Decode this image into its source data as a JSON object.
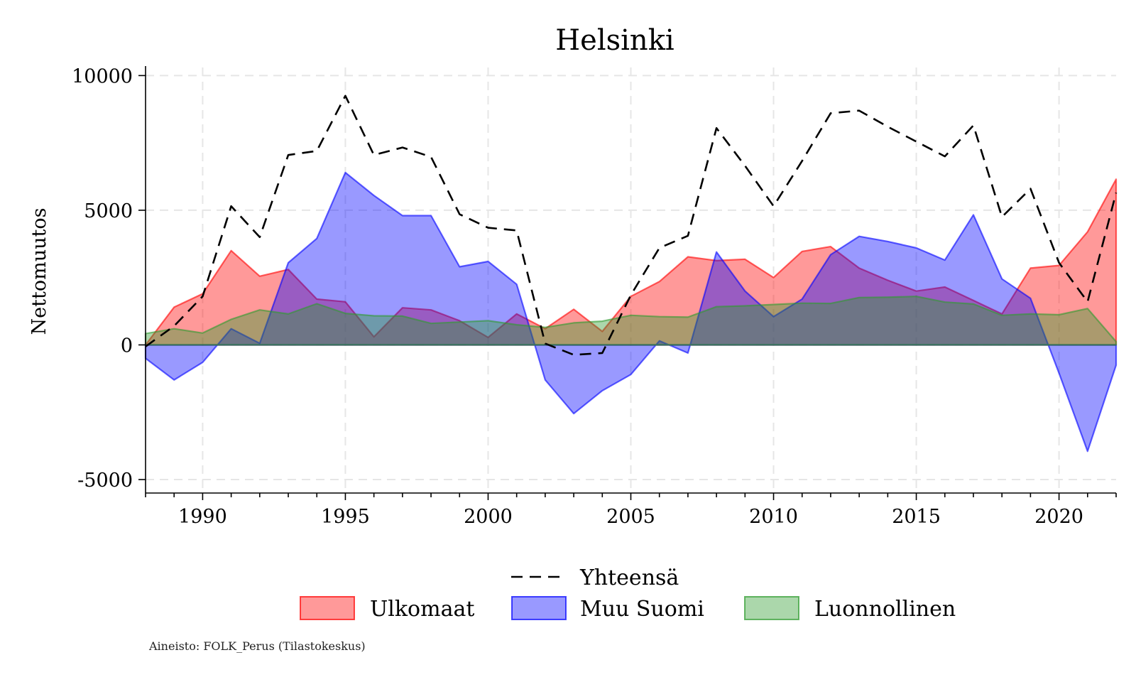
{
  "chart_data": {
    "type": "area",
    "title": "Helsinki",
    "xlabel": "",
    "ylabel": "Nettomuutos",
    "xlim": [
      1988,
      2022
    ],
    "ylim": [
      -5500,
      10300
    ],
    "xticks": [
      1990,
      1995,
      2000,
      2005,
      2010,
      2015,
      2020
    ],
    "yticks": [
      -5000,
      0,
      5000,
      10000
    ],
    "x": [
      1988,
      1989,
      1990,
      1991,
      1992,
      1993,
      1994,
      1995,
      1996,
      1997,
      1998,
      1999,
      2000,
      2001,
      2002,
      2003,
      2004,
      2005,
      2006,
      2007,
      2008,
      2009,
      2010,
      2011,
      2012,
      2013,
      2014,
      2015,
      2016,
      2017,
      2018,
      2019,
      2020,
      2021,
      2022
    ],
    "series": [
      {
        "name": "Ulkomaat",
        "style": "area",
        "color": "#ff0000",
        "values": [
          0,
          1400,
          1900,
          3500,
          2550,
          2800,
          1700,
          1600,
          300,
          1380,
          1300,
          900,
          280,
          1150,
          600,
          1320,
          500,
          1800,
          2350,
          3270,
          3130,
          3180,
          2500,
          3470,
          3650,
          2850,
          2400,
          2000,
          2150,
          1650,
          1150,
          2850,
          2950,
          4200,
          6150
        ]
      },
      {
        "name": "Muu Suomi",
        "style": "area",
        "color": "#0000ff",
        "values": [
          -500,
          -1300,
          -650,
          600,
          60,
          3050,
          3950,
          6400,
          5550,
          4800,
          4800,
          2900,
          3100,
          2250,
          -1300,
          -2550,
          -1700,
          -1100,
          150,
          -300,
          3450,
          2000,
          1050,
          1700,
          3350,
          4030,
          3840,
          3600,
          3150,
          4830,
          2450,
          1730,
          -1050,
          -3950,
          -750
        ]
      },
      {
        "name": "Luonnollinen",
        "style": "area",
        "color": "#2e9b2e",
        "values": [
          420,
          600,
          440,
          950,
          1300,
          1150,
          1530,
          1170,
          1080,
          1070,
          800,
          850,
          900,
          750,
          650,
          820,
          880,
          1100,
          1050,
          1030,
          1420,
          1450,
          1500,
          1550,
          1540,
          1760,
          1770,
          1800,
          1590,
          1520,
          1100,
          1150,
          1120,
          1350,
          120
        ]
      },
      {
        "name": "Yhteensä",
        "style": "dashed-line",
        "color": "#000000",
        "values": [
          -60,
          700,
          1800,
          5150,
          4000,
          7050,
          7200,
          9250,
          7050,
          7330,
          6980,
          4850,
          4350,
          4250,
          50,
          -370,
          -300,
          1850,
          3600,
          4050,
          8050,
          6650,
          5150,
          6830,
          8600,
          8700,
          8100,
          7550,
          7000,
          8150,
          4750,
          5800,
          3050,
          1600,
          5650
        ]
      }
    ],
    "legend": {
      "position": "bottom",
      "items": [
        "Yhteensä",
        "Ulkomaat",
        "Muu Suomi",
        "Luonnollinen"
      ]
    },
    "grid": true
  },
  "source_note": "Aineisto: FOLK_Perus (Tilastokeskus)"
}
